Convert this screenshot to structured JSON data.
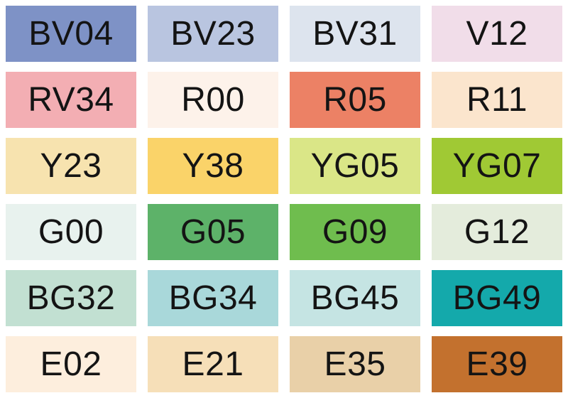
{
  "page": {
    "background_color": "#ffffff",
    "label_color": "#141414"
  },
  "palette": {
    "columns": 4,
    "rows": 6,
    "swatches": [
      {
        "label": "BV04",
        "color": "#7e92c6"
      },
      {
        "label": "BV23",
        "color": "#b9c5e0"
      },
      {
        "label": "BV31",
        "color": "#dde4ee"
      },
      {
        "label": "V12",
        "color": "#f1dde9"
      },
      {
        "label": "RV34",
        "color": "#f3aeb3"
      },
      {
        "label": "R00",
        "color": "#fdf2ea"
      },
      {
        "label": "R05",
        "color": "#ec8165"
      },
      {
        "label": "R11",
        "color": "#fbe5cd"
      },
      {
        "label": "Y23",
        "color": "#f7e3af"
      },
      {
        "label": "Y38",
        "color": "#fad369"
      },
      {
        "label": "YG05",
        "color": "#dae687"
      },
      {
        "label": "YG07",
        "color": "#a0c934"
      },
      {
        "label": "G00",
        "color": "#e8f2ee"
      },
      {
        "label": "G05",
        "color": "#5db269"
      },
      {
        "label": "G09",
        "color": "#6fbd4e"
      },
      {
        "label": "G12",
        "color": "#e4ecdc"
      },
      {
        "label": "BG32",
        "color": "#c2e0d2"
      },
      {
        "label": "BG34",
        "color": "#a9d8da"
      },
      {
        "label": "BG45",
        "color": "#c5e4e3"
      },
      {
        "label": "BG49",
        "color": "#14a9ab"
      },
      {
        "label": "E02",
        "color": "#fdeedd"
      },
      {
        "label": "E21",
        "color": "#f6dfb8"
      },
      {
        "label": "E35",
        "color": "#e9d0a8"
      },
      {
        "label": "E39",
        "color": "#c3712e"
      }
    ]
  }
}
